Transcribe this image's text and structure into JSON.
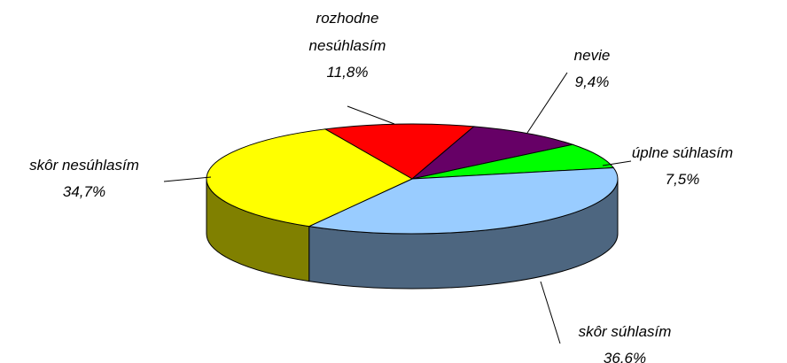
{
  "chart_data": {
    "type": "pie3d",
    "categories": [
      "rozhodne nesúhlasím",
      "nevie",
      "úplne súhlasím",
      "skôr súhlasím",
      "skôr nesúhlasím"
    ],
    "values": [
      11.8,
      9.4,
      7.5,
      36.6,
      34.7
    ],
    "value_labels": [
      "11,8%",
      "9,4%",
      "7,5%",
      "36,6%",
      "34,7%"
    ],
    "colors": [
      "#ff0000",
      "#660066",
      "#00ff00",
      "#99ccff",
      "#ffff00"
    ],
    "side_colors": [
      "#800000",
      "#330033",
      "#008000",
      "#4d6680",
      "#808000"
    ]
  }
}
